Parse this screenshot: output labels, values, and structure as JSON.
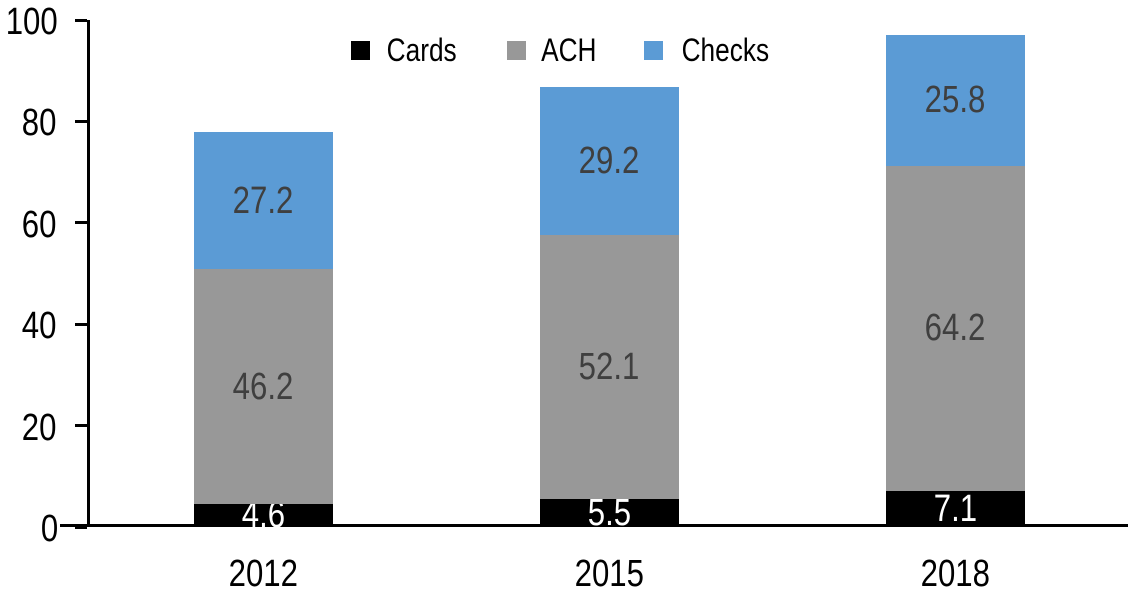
{
  "chart": {
    "background_color": "#ffffff",
    "axis_color": "#000000"
  },
  "chart_data": {
    "type": "bar",
    "stacked": true,
    "title": "",
    "xlabel": "",
    "ylabel": "",
    "categories": [
      "2012",
      "2015",
      "2018"
    ],
    "series": [
      {
        "name": "Cards",
        "color": "#000000",
        "label_color": "#ffffff",
        "values": [
          4.6,
          5.5,
          7.1
        ]
      },
      {
        "name": "ACH",
        "color": "#989898",
        "label_color": "#3f3f3f",
        "values": [
          46.2,
          52.1,
          64.2
        ]
      },
      {
        "name": "Checks",
        "color": "#5b9bd5",
        "label_color": "#3f3f3f",
        "values": [
          27.2,
          29.2,
          25.8
        ]
      }
    ],
    "ylim": [
      0,
      100
    ],
    "yticks": [
      0,
      20,
      40,
      60,
      80,
      100
    ],
    "grid": false,
    "legend_position": "top"
  }
}
